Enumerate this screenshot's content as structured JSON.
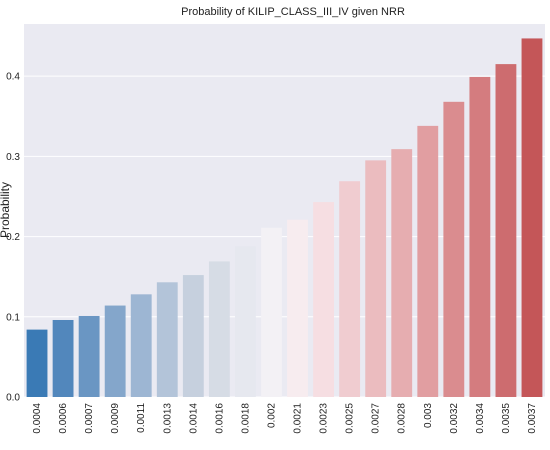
{
  "chart_data": {
    "type": "bar",
    "title": "Probability of KILIP_CLASS_III_IV given NRR",
    "xlabel": "",
    "ylabel": "Probability",
    "ylim": [
      0,
      0.465
    ],
    "yticks": [
      "0.0",
      "0.1",
      "0.2",
      "0.3",
      "0.4"
    ],
    "grid": true,
    "categories": [
      "0.0004",
      "0.0006",
      "0.0007",
      "0.0009",
      "0.0011",
      "0.0013",
      "0.0014",
      "0.0016",
      "0.0018",
      "0.002",
      "0.0021",
      "0.0023",
      "0.0025",
      "0.0027",
      "0.0028",
      "0.003",
      "0.0032",
      "0.0034",
      "0.0035",
      "0.0037"
    ],
    "values": [
      0.084,
      0.096,
      0.101,
      0.114,
      0.128,
      0.143,
      0.152,
      0.169,
      0.188,
      0.211,
      0.221,
      0.243,
      0.269,
      0.295,
      0.309,
      0.338,
      0.368,
      0.399,
      0.415,
      0.447
    ],
    "colors": [
      "#3a7ab5",
      "#5287bc",
      "#6a96c3",
      "#84a6cb",
      "#9db6d3",
      "#b3c4d9",
      "#c6d0de",
      "#d6dce5",
      "#e6e8ef",
      "#f3f1f5",
      "#f7ecef",
      "#f6dee2",
      "#f0ccd0",
      "#ebbcbf",
      "#e6adb0",
      "#e19ea1",
      "#da8c8f",
      "#d47c7f",
      "#cd6c6f",
      "#c45658"
    ],
    "background": "#eaeaf2",
    "grid_color": "#ffffff"
  }
}
